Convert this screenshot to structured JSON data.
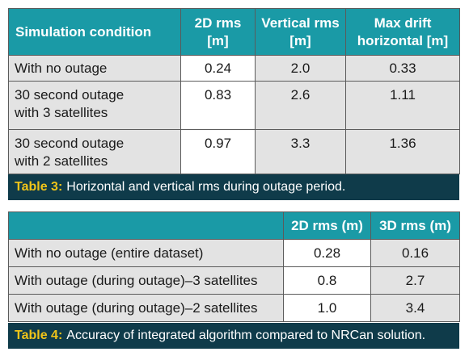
{
  "table3": {
    "headers": [
      "Simulation condition",
      "2D rms\n[m]",
      "Vertical rms\n[m]",
      "Max drift\nhorizontal [m]"
    ],
    "rows": [
      [
        "With no outage",
        "0.24",
        "2.0",
        "0.33"
      ],
      [
        "30 second outage\nwith 3 satellites",
        "0.83",
        "2.6",
        "1.11"
      ],
      [
        "30 second outage\nwith 2 satellites",
        "0.97",
        "3.3",
        "1.36"
      ]
    ],
    "caption_label": "Table 3:",
    "caption_text": "Horizontal and vertical rms during outage period."
  },
  "table4": {
    "headers": [
      "",
      "2D rms (m)",
      "3D rms (m)"
    ],
    "rows": [
      [
        "With no outage (entire dataset)",
        "0.28",
        "0.16"
      ],
      [
        "With outage (during outage)–3 satellites",
        "0.8",
        "2.7"
      ],
      [
        "With outage (during outage)–2 satellites",
        "1.0",
        "3.4"
      ]
    ],
    "caption_label": "Table 4:",
    "caption_text": "Accuracy of integrated algorithm compared to NRCan solution."
  },
  "colors": {
    "header_teal": "#1a9aa6",
    "caption_navy": "#0f3b4a",
    "caption_label_yellow": "#f0c419",
    "row_gray": "#e3e3e3"
  }
}
